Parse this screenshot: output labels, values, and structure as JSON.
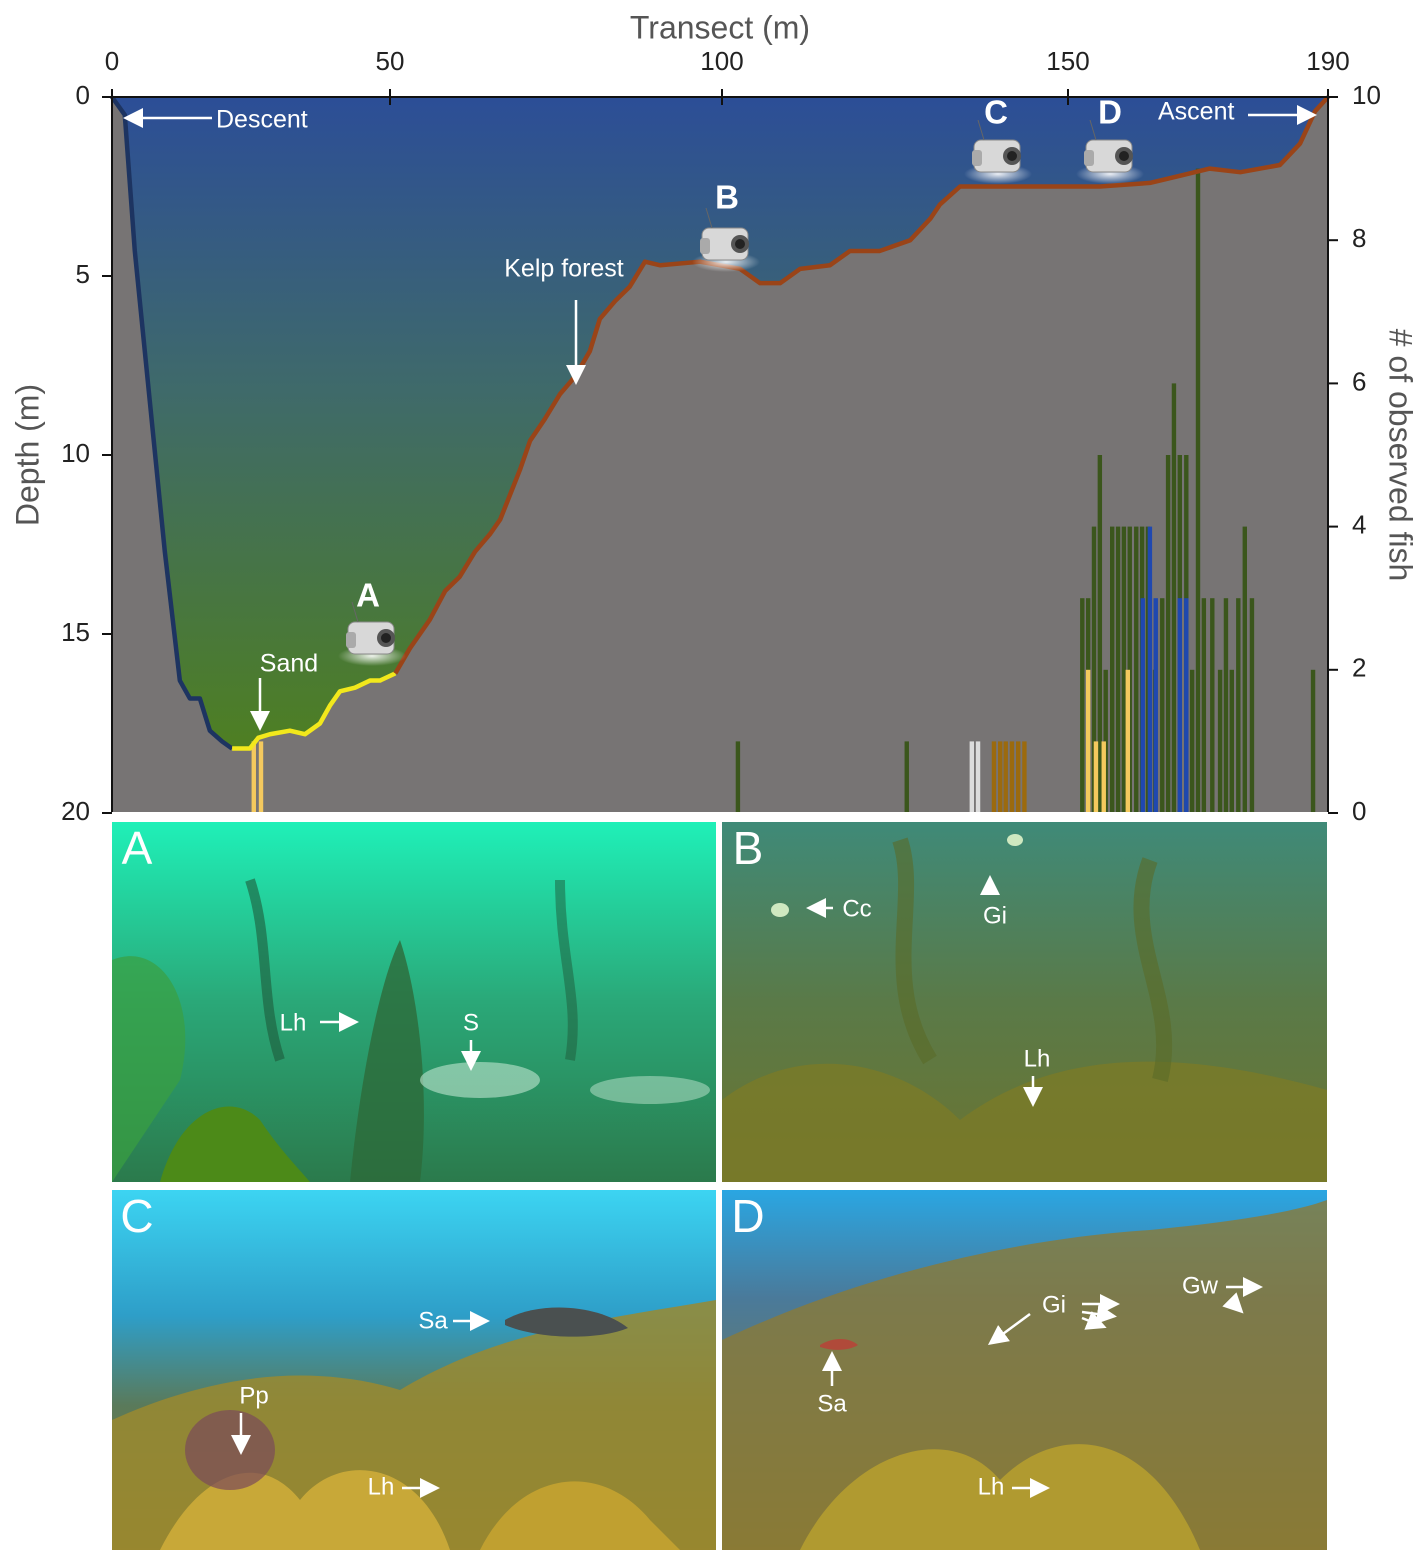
{
  "chart_data": {
    "type": "area",
    "xlabel": "Transect (m)",
    "ylabel": "Depth (m)",
    "y2label": "# of observed fish",
    "xlim": [
      0,
      190
    ],
    "xticks": [
      0,
      50,
      100,
      150,
      190
    ],
    "ylim": [
      0,
      20
    ],
    "yticks": [
      0,
      5,
      10,
      15,
      20
    ],
    "y_inverted": true,
    "y2lim": [
      0,
      10
    ],
    "y2ticks": [
      0,
      2,
      4,
      6,
      8,
      10
    ],
    "series": [
      {
        "type": "line",
        "color": "#1d3461",
        "x": [
          0,
          2.3,
          4.1,
          6.8,
          9.5,
          12.2,
          14.0,
          15.8,
          17.6,
          19.8,
          21.6
        ],
        "values": [
          0,
          0.5,
          4.3,
          8.5,
          12.7,
          16.3,
          16.8,
          16.8,
          17.7,
          18.0,
          18.2
        ]
      },
      {
        "type": "line",
        "color": "#f2e81c",
        "x": [
          21.6,
          24.8,
          26.3,
          28.4,
          32.0,
          34.7,
          37.4,
          39.2,
          41.0,
          43.7,
          46.4,
          48.2,
          50.8
        ],
        "values": [
          18.2,
          18.2,
          17.9,
          17.8,
          17.7,
          17.8,
          17.5,
          17.0,
          16.6,
          16.5,
          16.3,
          16.3,
          16.1
        ]
      },
      {
        "type": "line",
        "color": "#9a4418",
        "x": [
          50.8,
          53,
          56,
          58.3,
          60.5,
          62.8,
          65.1,
          66.6,
          68.1,
          69.6,
          71.1,
          73.3,
          75.6,
          77.9,
          80.1,
          81.6,
          83.9,
          86.1,
          88.4,
          90.7,
          96.7,
          102.6,
          105.5,
          108.4,
          111.3,
          115.6,
          118.5,
          122.8,
          127.2,
          130.1,
          131.5,
          134.4,
          140.2,
          146,
          150,
          154.9,
          162.6,
          167.2,
          171.8,
          176.5,
          182.6,
          185.7,
          188,
          190
        ],
        "values": [
          16.1,
          15.4,
          14.6,
          13.8,
          13.4,
          12.7,
          12.2,
          11.8,
          11.1,
          10.4,
          9.6,
          9.0,
          8.3,
          7.8,
          7.1,
          6.2,
          5.7,
          5.3,
          4.6,
          4.7,
          4.6,
          4.8,
          5.2,
          5.2,
          4.8,
          4.7,
          4.3,
          4.3,
          4.0,
          3.4,
          3.0,
          2.5,
          2.5,
          2.5,
          2.5,
          2.5,
          2.4,
          2.2,
          2.0,
          2.1,
          1.9,
          1.3,
          0.4,
          0
        ]
      },
      {
        "type": "bar",
        "axis": "y2",
        "color": "#3b561c",
        "x": [
          102.3,
          126.7,
          152.2,
          153.1,
          154.0,
          154.9,
          155.8,
          156.8,
          157.7,
          158.6,
          159.5,
          160.5,
          161.4,
          162.3,
          163.4,
          164.5,
          165.4,
          166.3,
          167.2,
          168.2,
          169.1,
          170.0,
          170.9,
          172.2,
          173.4,
          174.3,
          175.2,
          176.2,
          177.2,
          178.3,
          187.7
        ],
        "values": [
          1,
          1,
          3,
          3,
          4,
          5,
          2,
          4,
          4,
          4,
          4,
          4,
          4,
          4,
          2,
          3,
          5,
          6,
          5,
          5,
          2,
          9,
          3,
          3,
          2,
          3,
          2,
          3,
          4,
          3,
          2
        ]
      },
      {
        "type": "bar",
        "axis": "y2",
        "color": "#1f48b0",
        "x": [
          161.5,
          162.6,
          163.5,
          167.2,
          168.2
        ],
        "values": [
          3,
          4,
          3,
          3,
          3
        ]
      },
      {
        "type": "bar",
        "axis": "y2",
        "color": "#f4c95e",
        "x": [
          25.5,
          26.8,
          153.1,
          154.3,
          155.5,
          159.2
        ],
        "values": [
          1,
          1,
          2,
          1,
          1,
          2
        ]
      },
      {
        "type": "bar",
        "axis": "y2",
        "color": "#dcdcdc",
        "x": [
          136.1,
          137.0
        ],
        "values": [
          1,
          1
        ]
      },
      {
        "type": "bar",
        "axis": "y2",
        "color": "#9b6a0e",
        "x": [
          139.3,
          140.2,
          141.0,
          141.9,
          142.8,
          143.7
        ],
        "values": [
          1,
          1,
          1,
          1,
          1,
          1
        ]
      }
    ],
    "annotations": [
      {
        "text": "Descent"
      },
      {
        "text": "Ascent"
      },
      {
        "text": "Kelp forest"
      },
      {
        "text": "Sand"
      },
      {
        "text": "A"
      },
      {
        "text": "B"
      },
      {
        "text": "C"
      },
      {
        "text": "D"
      }
    ]
  },
  "photos": [
    {
      "letter": "A",
      "labels": [
        "Lh",
        "S"
      ]
    },
    {
      "letter": "B",
      "labels": [
        "Cc",
        "Gi",
        "Lh"
      ]
    },
    {
      "letter": "C",
      "labels": [
        "Sa",
        "Pp",
        "Lh"
      ]
    },
    {
      "letter": "D",
      "labels": [
        "Gw",
        "Gi",
        "Sa",
        "Lh"
      ]
    }
  ]
}
